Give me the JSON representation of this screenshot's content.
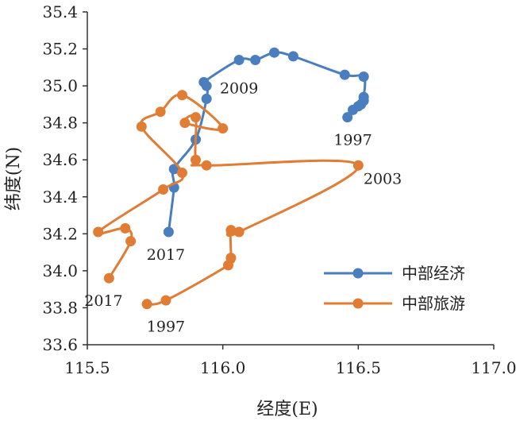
{
  "chart_data": {
    "type": "line",
    "xlabel": "经度(E)",
    "ylabel": "纬度(N)",
    "xlim": [
      115.5,
      117.0
    ],
    "ylim": [
      33.6,
      35.4
    ],
    "x_ticks": [
      115.5,
      116.0,
      116.5,
      117.0
    ],
    "x_tick_labels": [
      "115.5",
      "116.0",
      "116.5",
      "117.0"
    ],
    "y_ticks": [
      33.6,
      33.8,
      34.0,
      34.2,
      34.4,
      34.6,
      34.8,
      35.0,
      35.2,
      35.4
    ],
    "y_tick_labels": [
      "33.6",
      "33.8",
      "34.0",
      "34.2",
      "34.4",
      "34.6",
      "34.8",
      "35.0",
      "35.2",
      "35.4"
    ],
    "grid": false,
    "legend_position": "bottom-right",
    "series": [
      {
        "name": "中部经济",
        "color": "#4a7ebf",
        "points": [
          [
            116.46,
            34.83
          ],
          [
            116.48,
            34.87
          ],
          [
            116.5,
            34.89
          ],
          [
            116.51,
            34.9
          ],
          [
            116.52,
            34.92
          ],
          [
            116.52,
            34.94
          ],
          [
            116.52,
            35.05
          ],
          [
            116.45,
            35.06
          ],
          [
            116.26,
            35.16
          ],
          [
            116.19,
            35.18
          ],
          [
            116.12,
            35.14
          ],
          [
            116.06,
            35.14
          ],
          [
            115.93,
            35.02
          ],
          [
            115.94,
            35.0
          ],
          [
            115.94,
            34.93
          ],
          [
            115.9,
            34.71
          ],
          [
            115.82,
            34.55
          ],
          [
            115.82,
            34.45
          ],
          [
            115.8,
            34.21
          ]
        ]
      },
      {
        "name": "中部旅游",
        "color": "#e07c33",
        "points": [
          [
            115.72,
            33.82
          ],
          [
            115.79,
            33.84
          ],
          [
            116.02,
            34.03
          ],
          [
            116.03,
            34.07
          ],
          [
            116.03,
            34.22
          ],
          [
            116.06,
            34.21
          ],
          [
            116.5,
            34.57
          ],
          [
            115.94,
            34.57
          ],
          [
            115.9,
            34.6
          ],
          [
            115.9,
            34.83
          ],
          [
            115.86,
            34.8
          ],
          [
            116.0,
            34.77
          ],
          [
            115.85,
            34.95
          ],
          [
            115.77,
            34.86
          ],
          [
            115.7,
            34.78
          ],
          [
            115.85,
            34.53
          ],
          [
            115.78,
            34.44
          ],
          [
            115.54,
            34.21
          ],
          [
            115.64,
            34.23
          ],
          [
            115.66,
            34.16
          ],
          [
            115.58,
            33.96
          ]
        ]
      }
    ],
    "annotations": [
      {
        "text": "1997",
        "x": 116.48,
        "y": 34.71,
        "anchor": "middle"
      },
      {
        "text": "2009",
        "x": 116.06,
        "y": 34.99,
        "anchor": "middle"
      },
      {
        "text": "2003",
        "x": 116.59,
        "y": 34.5,
        "anchor": "middle"
      },
      {
        "text": "2017",
        "x": 115.79,
        "y": 34.09,
        "anchor": "middle"
      },
      {
        "text": "2017",
        "x": 115.56,
        "y": 33.84,
        "anchor": "middle"
      },
      {
        "text": "1997",
        "x": 115.79,
        "y": 33.7,
        "anchor": "middle"
      }
    ]
  }
}
